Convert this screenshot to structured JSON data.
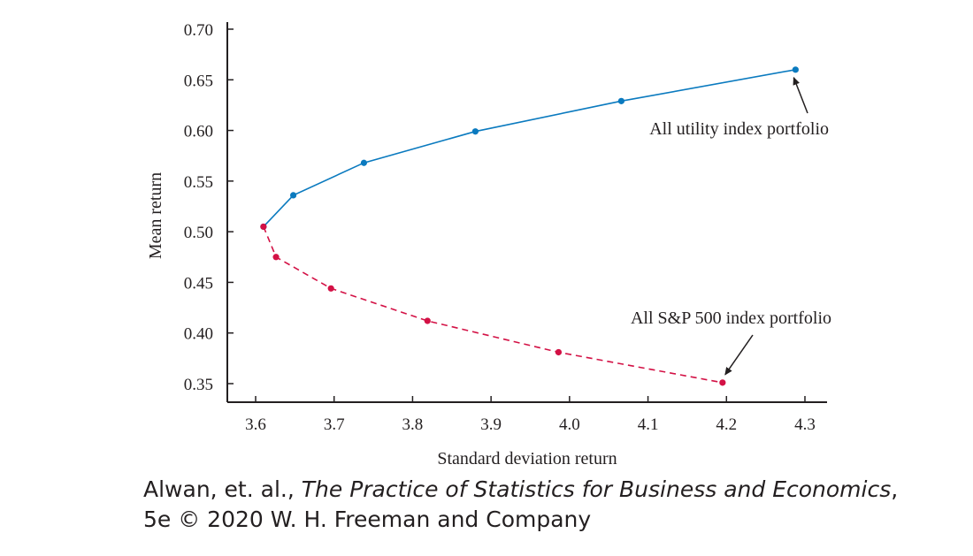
{
  "chart_data": {
    "type": "line",
    "xlabel": "Standard deviation return",
    "ylabel": "Mean return",
    "xlim": [
      3.6,
      4.3
    ],
    "ylim": [
      0.33,
      0.7
    ],
    "x_ticks": [
      "3.6",
      "3.7",
      "3.8",
      "3.9",
      "4.0",
      "4.1",
      "4.2",
      "4.3"
    ],
    "y_ticks": [
      "0.70",
      "0.65",
      "0.60",
      "0.55",
      "0.50",
      "0.45",
      "0.40",
      "0.35"
    ],
    "grid": false,
    "series": [
      {
        "color": "#0a7abf",
        "style": "solid",
        "points": [
          {
            "x": 3.61,
            "y": 0.505
          },
          {
            "x": 3.648,
            "y": 0.536
          },
          {
            "x": 3.738,
            "y": 0.568
          },
          {
            "x": 3.88,
            "y": 0.599
          },
          {
            "x": 4.066,
            "y": 0.629
          },
          {
            "x": 4.288,
            "y": 0.66
          }
        ]
      },
      {
        "color": "#d31145",
        "style": "dashed",
        "points": [
          {
            "x": 3.61,
            "y": 0.505
          },
          {
            "x": 3.626,
            "y": 0.475
          },
          {
            "x": 3.696,
            "y": 0.444
          },
          {
            "x": 3.819,
            "y": 0.412
          },
          {
            "x": 3.986,
            "y": 0.381
          },
          {
            "x": 4.195,
            "y": 0.351
          }
        ]
      }
    ],
    "annotations": [
      {
        "text": "All utility index portfolio",
        "target": {
          "x": 4.288,
          "y": 0.66
        }
      },
      {
        "text": "All S&P 500 index portfolio",
        "target": {
          "x": 4.195,
          "y": 0.351
        }
      }
    ]
  },
  "credit": {
    "authors": "Alwan, et. al.,",
    "book_title": "The Practice of Statistics for Business and Economics",
    "comma": ",",
    "line2": "5e © 2020 W. H. Freeman and Company"
  }
}
